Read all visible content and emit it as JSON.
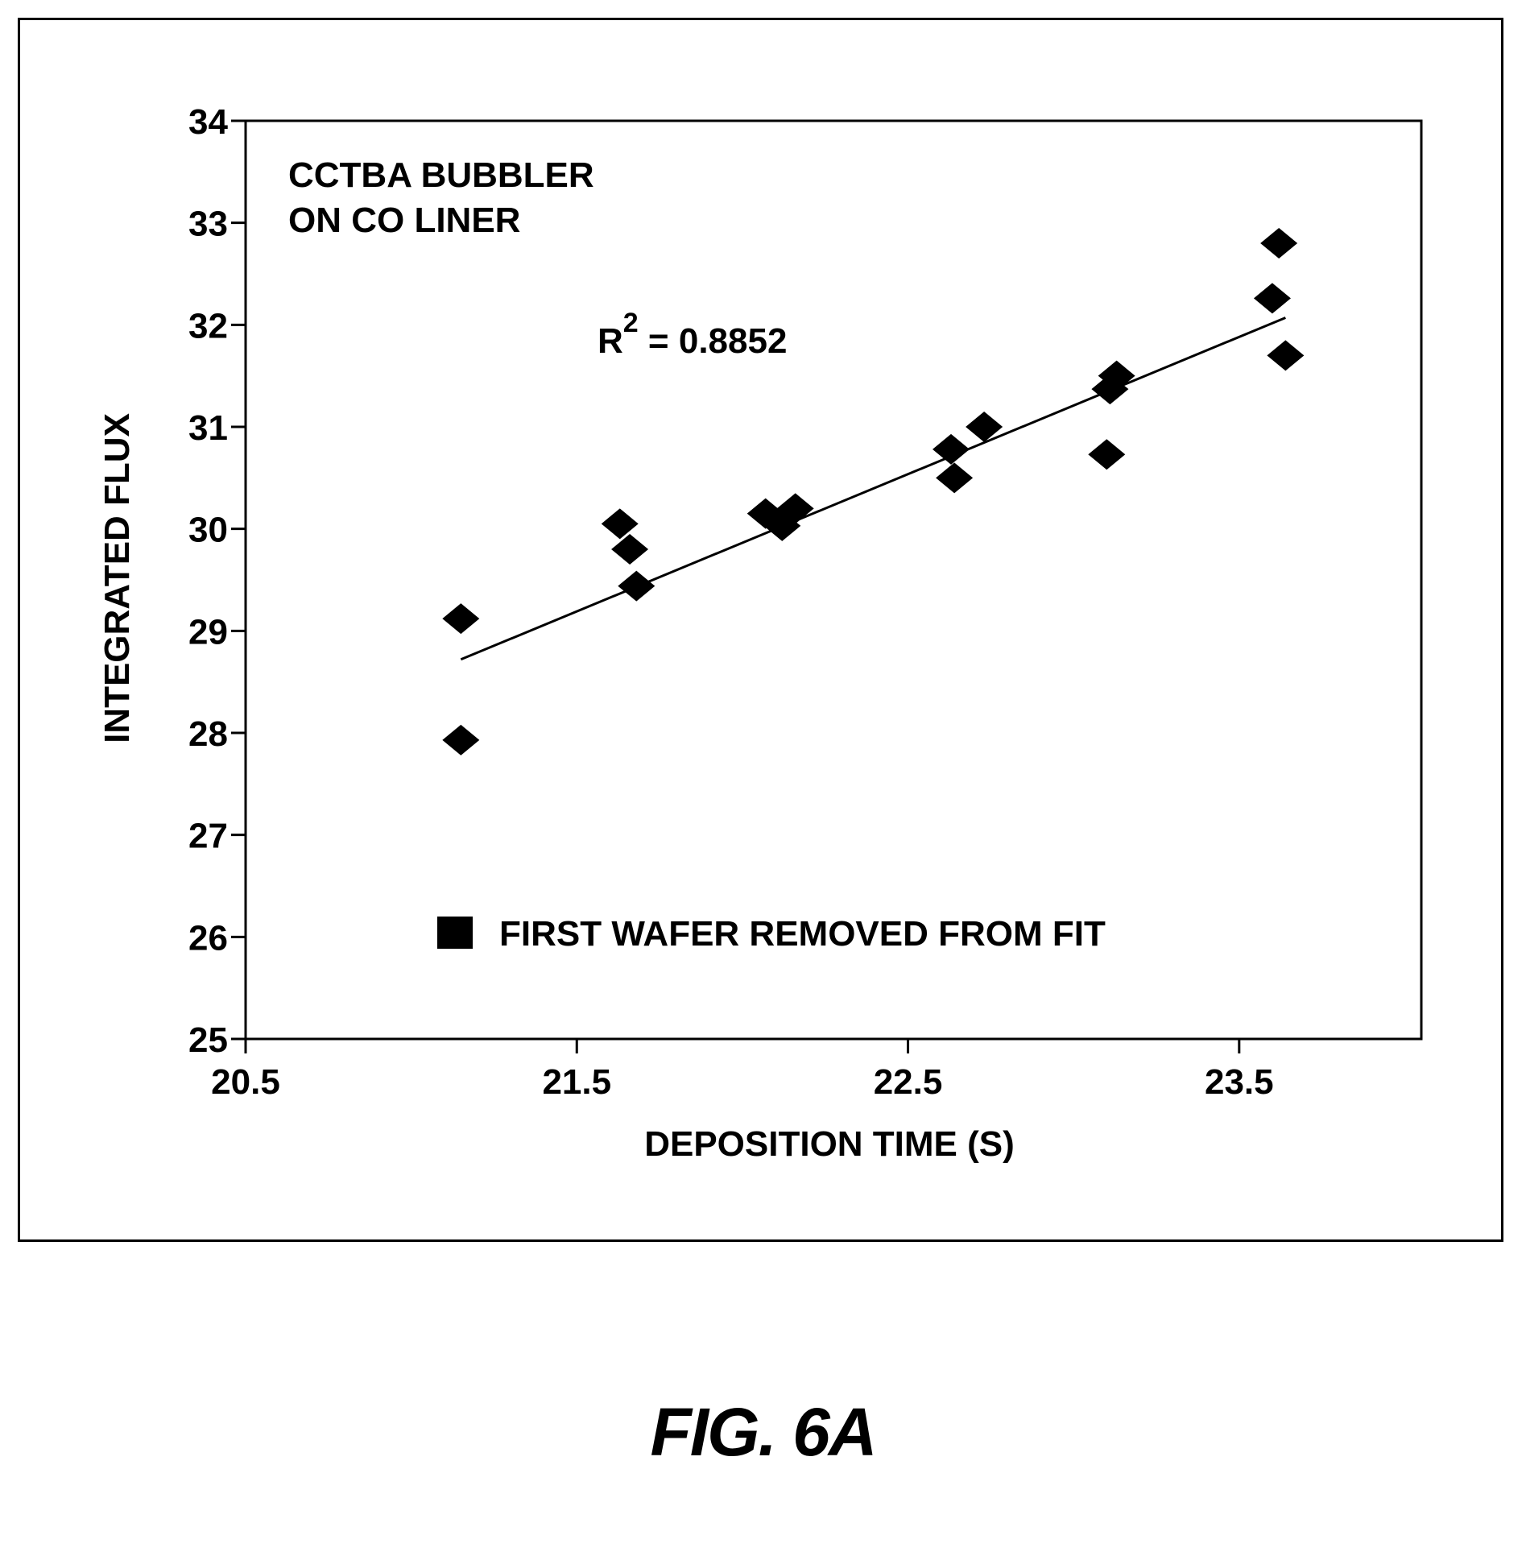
{
  "chart_data": {
    "type": "scatter",
    "title": "",
    "xlabel": "DEPOSITION TIME (S)",
    "ylabel": "INTEGRATED FLUX",
    "xlim": [
      20.5,
      24.05
    ],
    "ylim": [
      25,
      34
    ],
    "xticks": [
      20.5,
      21.5,
      22.5,
      23.5
    ],
    "xtick_labels": [
      "20.5",
      "21.5",
      "22.5",
      "23.5"
    ],
    "yticks": [
      25,
      26,
      27,
      28,
      29,
      30,
      31,
      32,
      33,
      34
    ],
    "ytick_labels": [
      "25",
      "26",
      "27",
      "28",
      "29",
      "30",
      "31",
      "32",
      "33",
      "34"
    ],
    "grid": false,
    "annotation_lines": [
      "CCTBA BUBBLER",
      "ON CO LINER"
    ],
    "r2": {
      "base": "R",
      "sup": "2",
      "rest": " = 0.8852"
    },
    "legend": {
      "label": "FIRST WAFER REMOVED FROM FIT",
      "placement": "bottom-left",
      "marker": "square"
    },
    "series": [
      {
        "marker": "diamond",
        "x": [
          21.15,
          21.15,
          21.63,
          21.66,
          21.68,
          22.07,
          22.12,
          22.16,
          22.63,
          22.64,
          22.73,
          23.1,
          23.11,
          23.13,
          23.6,
          23.62,
          23.64
        ],
        "y": [
          29.12,
          27.93,
          30.05,
          29.8,
          29.44,
          30.15,
          30.03,
          30.2,
          30.78,
          30.5,
          31.0,
          30.73,
          31.37,
          31.5,
          32.26,
          32.8,
          31.7
        ]
      }
    ],
    "fit_line": {
      "x": [
        21.15,
        23.64
      ],
      "y": [
        28.72,
        32.07
      ]
    },
    "colors": {
      "ink": "#000000",
      "background": "#ffffff"
    }
  },
  "figure_label": "FIG. 6A"
}
